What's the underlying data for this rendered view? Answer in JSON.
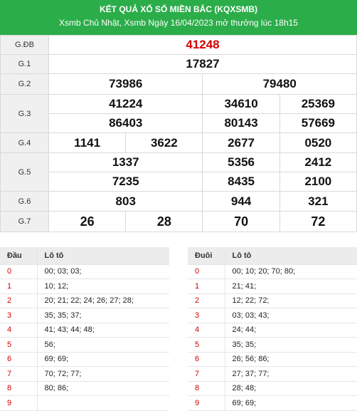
{
  "header": {
    "title": "KẾT QUẢ XỔ SỐ MIỀN BẮC (KQXSMB)",
    "subtitle": "Xsmb Chủ Nhật, Xsmb Ngày 16/04/2023 mở thưởng lúc 18h15"
  },
  "prizes": {
    "db": {
      "label": "G.ĐB",
      "values": [
        "41248"
      ]
    },
    "g1": {
      "label": "G.1",
      "values": [
        "17827"
      ]
    },
    "g2": {
      "label": "G.2",
      "values": [
        "73986",
        "79480"
      ]
    },
    "g3": {
      "label": "G.3",
      "values": [
        "41224",
        "34610",
        "25369",
        "86403",
        "80143",
        "57669"
      ]
    },
    "g4": {
      "label": "G.4",
      "values": [
        "1141",
        "3622",
        "2677",
        "0520"
      ]
    },
    "g5": {
      "label": "G.5",
      "values": [
        "1337",
        "5356",
        "2412",
        "7235",
        "8435",
        "2100"
      ]
    },
    "g6": {
      "label": "G.6",
      "values": [
        "803",
        "944",
        "321"
      ]
    },
    "g7": {
      "label": "G.7",
      "values": [
        "26",
        "28",
        "70",
        "72"
      ]
    }
  },
  "loto_head": {
    "col1": "Đầu",
    "col2": "Lô tô",
    "rows": [
      {
        "digit": "0",
        "values": "00; 03; 03;"
      },
      {
        "digit": "1",
        "values": "10; 12;"
      },
      {
        "digit": "2",
        "values": "20; 21; 22; 24; 26; 27; 28;"
      },
      {
        "digit": "3",
        "values": "35; 35; 37;"
      },
      {
        "digit": "4",
        "values": "41; 43; 44; 48;"
      },
      {
        "digit": "5",
        "values": "56;"
      },
      {
        "digit": "6",
        "values": "69; 69;"
      },
      {
        "digit": "7",
        "values": "70; 72; 77;"
      },
      {
        "digit": "8",
        "values": "80; 86;"
      },
      {
        "digit": "9",
        "values": ""
      }
    ]
  },
  "loto_tail": {
    "col1": "Đuôi",
    "col2": "Lô tô",
    "rows": [
      {
        "digit": "0",
        "values": "00; 10; 20; 70; 80;"
      },
      {
        "digit": "1",
        "values": "21; 41;"
      },
      {
        "digit": "2",
        "values": "12; 22; 72;"
      },
      {
        "digit": "3",
        "values": "03; 03; 43;"
      },
      {
        "digit": "4",
        "values": "24; 44;"
      },
      {
        "digit": "5",
        "values": "35; 35;"
      },
      {
        "digit": "6",
        "values": "26; 56; 86;"
      },
      {
        "digit": "7",
        "values": "27; 37; 77;"
      },
      {
        "digit": "8",
        "values": "28; 48;"
      },
      {
        "digit": "9",
        "values": "69; 69;"
      }
    ]
  },
  "colors": {
    "header_bg": "#2bad4a",
    "special_prize": "#d40000",
    "digit": "#d40000"
  }
}
